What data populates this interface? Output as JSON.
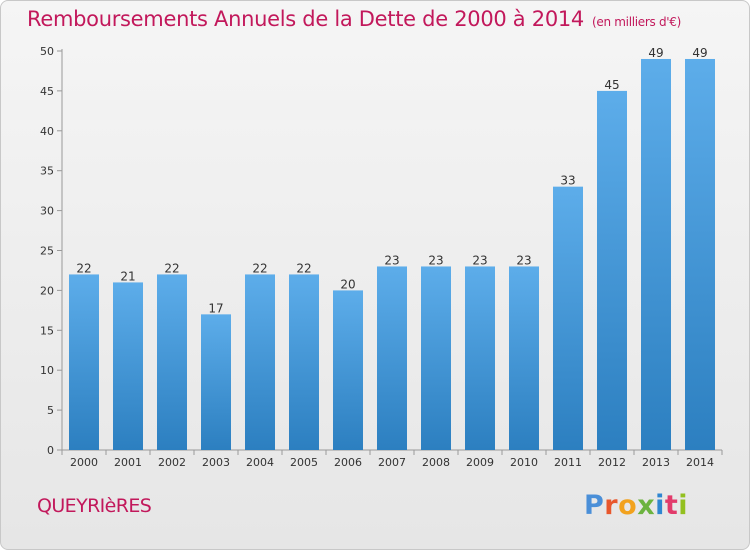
{
  "chart_data": {
    "type": "bar",
    "title": "Remboursements Annuels de la Dette de 2000 à 2014",
    "subtitle": "(en milliers d'€)",
    "categories": [
      "2000",
      "2001",
      "2002",
      "2003",
      "2004",
      "2005",
      "2006",
      "2007",
      "2008",
      "2009",
      "2010",
      "2011",
      "2012",
      "2013",
      "2014"
    ],
    "values": [
      22,
      21,
      22,
      17,
      22,
      22,
      20,
      23,
      23,
      23,
      23,
      33,
      45,
      49,
      49
    ],
    "ylim": [
      0,
      50
    ],
    "yticks": [
      0,
      5,
      10,
      15,
      20,
      25,
      30,
      35,
      40,
      45,
      50
    ],
    "xlabel": "",
    "ylabel": "",
    "grid": false,
    "bar_color_top": "#5dadea",
    "bar_color_bottom": "#2c7fc0"
  },
  "footer": {
    "commune": "QUEYRIèRES",
    "brand_letters": [
      "P",
      "r",
      "o",
      "x",
      "i",
      "t",
      "i"
    ]
  }
}
